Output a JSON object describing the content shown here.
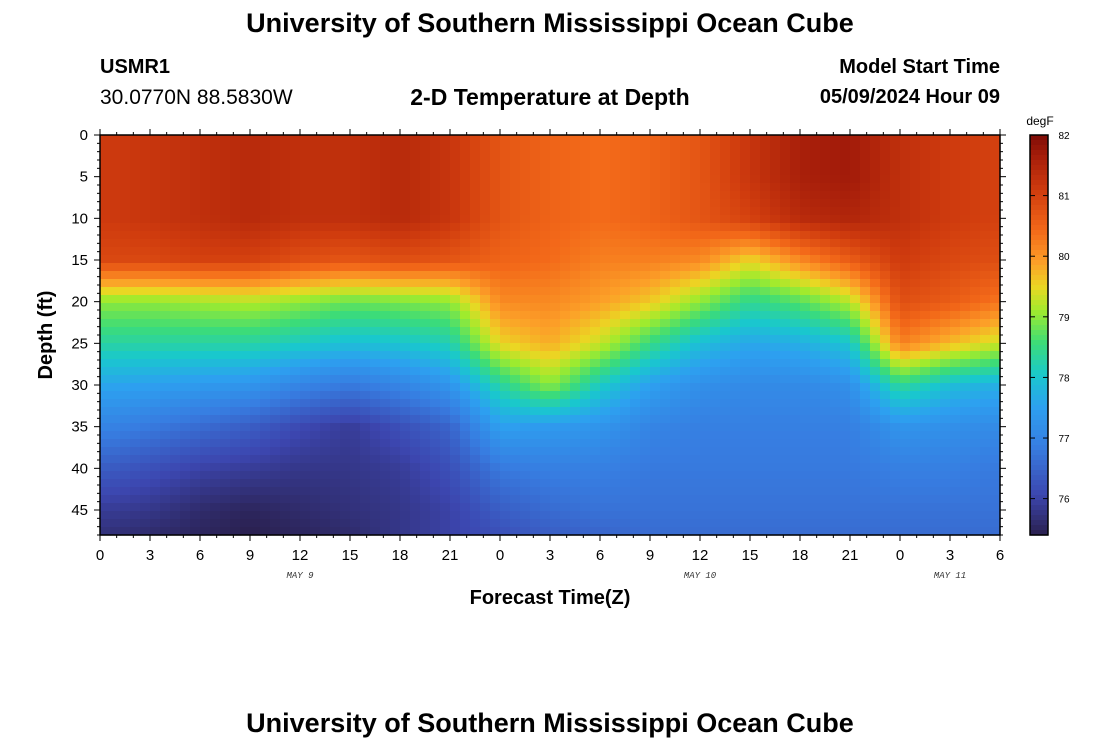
{
  "header": {
    "title": "University of Southern Mississippi Ocean Cube",
    "station_id": "USMR1",
    "station_coords": "30.0770N  88.5830W",
    "plot_title": "2-D Temperature at Depth",
    "model_start_label": "Model Start Time",
    "model_start_value": "05/09/2024 Hour 09"
  },
  "footer": {
    "title": "University of Southern Mississippi Ocean Cube"
  },
  "chart_data": {
    "type": "heatmap",
    "title": "2-D Temperature at Depth",
    "xlabel": "Forecast Time(Z)",
    "ylabel": "Depth (ft)",
    "x_range_hours": [
      0,
      54
    ],
    "y_range_ft": [
      0,
      48
    ],
    "x_ticks": [
      {
        "hour": 0,
        "label": "0"
      },
      {
        "hour": 3,
        "label": "3"
      },
      {
        "hour": 6,
        "label": "6"
      },
      {
        "hour": 9,
        "label": "9"
      },
      {
        "hour": 12,
        "label": "12"
      },
      {
        "hour": 15,
        "label": "15"
      },
      {
        "hour": 18,
        "label": "18"
      },
      {
        "hour": 21,
        "label": "21"
      },
      {
        "hour": 24,
        "label": "0"
      },
      {
        "hour": 27,
        "label": "3"
      },
      {
        "hour": 30,
        "label": "6"
      },
      {
        "hour": 33,
        "label": "9"
      },
      {
        "hour": 36,
        "label": "12"
      },
      {
        "hour": 39,
        "label": "15"
      },
      {
        "hour": 42,
        "label": "18"
      },
      {
        "hour": 45,
        "label": "21"
      },
      {
        "hour": 48,
        "label": "0"
      },
      {
        "hour": 51,
        "label": "3"
      },
      {
        "hour": 54,
        "label": "6"
      }
    ],
    "day_labels": [
      {
        "hour": 12,
        "label": "MAY 9"
      },
      {
        "hour": 36,
        "label": "MAY 10"
      },
      {
        "hour": 51,
        "label": "MAY 11"
      }
    ],
    "y_ticks": [
      0,
      5,
      10,
      15,
      20,
      25,
      30,
      35,
      40,
      45
    ],
    "colorbar": {
      "unit": "degF",
      "min": 75.4,
      "max": 82.0,
      "ticks": [
        76,
        77,
        78,
        79,
        80,
        81,
        82
      ]
    },
    "profile_hours": [
      0,
      3,
      6,
      9,
      12,
      15,
      18,
      21,
      24,
      27,
      30,
      33,
      36,
      39,
      42,
      45,
      48,
      51,
      54
    ],
    "thermocline_depth_ft": [
      18,
      18.5,
      19,
      19,
      18.5,
      18,
      18,
      18.5,
      24,
      29,
      25,
      20,
      16,
      14,
      16,
      18,
      28,
      26,
      24
    ],
    "surface_temp_f": [
      81.1,
      81.2,
      81.3,
      81.4,
      81.3,
      81.3,
      81.4,
      81.2,
      80.7,
      80.5,
      80.4,
      80.5,
      80.7,
      81.2,
      81.6,
      81.7,
      81.3,
      81.1,
      81.0
    ],
    "bottom_temp_f": [
      75.7,
      75.6,
      75.5,
      75.4,
      75.5,
      75.6,
      75.8,
      76.0,
      76.2,
      76.4,
      76.5,
      76.6,
      76.6,
      76.6,
      76.6,
      76.6,
      76.6,
      76.6,
      76.6
    ],
    "depth_samples_ft": [
      0,
      5,
      10,
      15,
      20,
      25,
      30,
      35,
      40,
      45,
      48
    ],
    "temperature_f_by_hour": [
      [
        81.1,
        81.1,
        81.1,
        80.9,
        79.0,
        78.3,
        77.6,
        77.0,
        76.4,
        75.9,
        75.7
      ],
      [
        81.2,
        81.2,
        81.2,
        80.9,
        79.0,
        78.3,
        77.5,
        76.8,
        76.2,
        75.8,
        75.6
      ],
      [
        81.3,
        81.3,
        81.3,
        81.0,
        79.1,
        78.3,
        77.4,
        76.6,
        76.0,
        75.6,
        75.5
      ],
      [
        81.4,
        81.4,
        81.4,
        81.0,
        79.2,
        78.3,
        77.3,
        76.4,
        75.9,
        75.5,
        75.4
      ],
      [
        81.3,
        81.3,
        81.3,
        80.8,
        79.0,
        78.1,
        77.0,
        76.1,
        75.8,
        75.6,
        75.5
      ],
      [
        81.3,
        81.3,
        81.3,
        80.7,
        78.8,
        77.9,
        76.8,
        75.9,
        75.8,
        75.7,
        75.6
      ],
      [
        81.4,
        81.4,
        81.4,
        80.8,
        78.9,
        78.0,
        77.0,
        76.2,
        75.9,
        75.8,
        75.8
      ],
      [
        81.2,
        81.2,
        81.2,
        80.7,
        79.0,
        78.2,
        77.3,
        76.5,
        76.2,
        76.0,
        76.0
      ],
      [
        80.7,
        80.7,
        80.7,
        80.5,
        80.1,
        79.5,
        78.3,
        77.5,
        76.8,
        76.4,
        76.2
      ],
      [
        80.5,
        80.5,
        80.5,
        80.4,
        80.1,
        79.8,
        79.0,
        77.4,
        76.9,
        76.6,
        76.4
      ],
      [
        80.4,
        80.4,
        80.4,
        80.2,
        79.9,
        79.3,
        78.1,
        77.3,
        76.9,
        76.7,
        76.5
      ],
      [
        80.5,
        80.5,
        80.5,
        80.2,
        79.6,
        78.5,
        77.5,
        77.0,
        76.8,
        76.7,
        76.6
      ],
      [
        80.7,
        80.7,
        80.7,
        80.1,
        79.0,
        77.9,
        77.2,
        76.9,
        76.8,
        76.7,
        76.6
      ],
      [
        81.2,
        81.2,
        81.0,
        79.5,
        78.4,
        77.6,
        77.1,
        76.9,
        76.8,
        76.7,
        76.6
      ],
      [
        81.6,
        81.6,
        81.4,
        80.1,
        78.7,
        77.7,
        77.1,
        76.9,
        76.8,
        76.7,
        76.6
      ],
      [
        81.7,
        81.7,
        81.5,
        80.6,
        79.2,
        78.0,
        77.2,
        76.9,
        76.8,
        76.7,
        76.6
      ],
      [
        81.3,
        81.3,
        81.3,
        81.1,
        80.8,
        80.2,
        78.4,
        77.3,
        76.9,
        76.7,
        76.6
      ],
      [
        81.1,
        81.1,
        81.1,
        80.9,
        80.6,
        79.7,
        77.9,
        77.2,
        76.9,
        76.7,
        76.6
      ],
      [
        81.0,
        81.0,
        81.0,
        80.8,
        80.3,
        79.3,
        77.7,
        77.1,
        76.8,
        76.7,
        76.6
      ]
    ]
  }
}
